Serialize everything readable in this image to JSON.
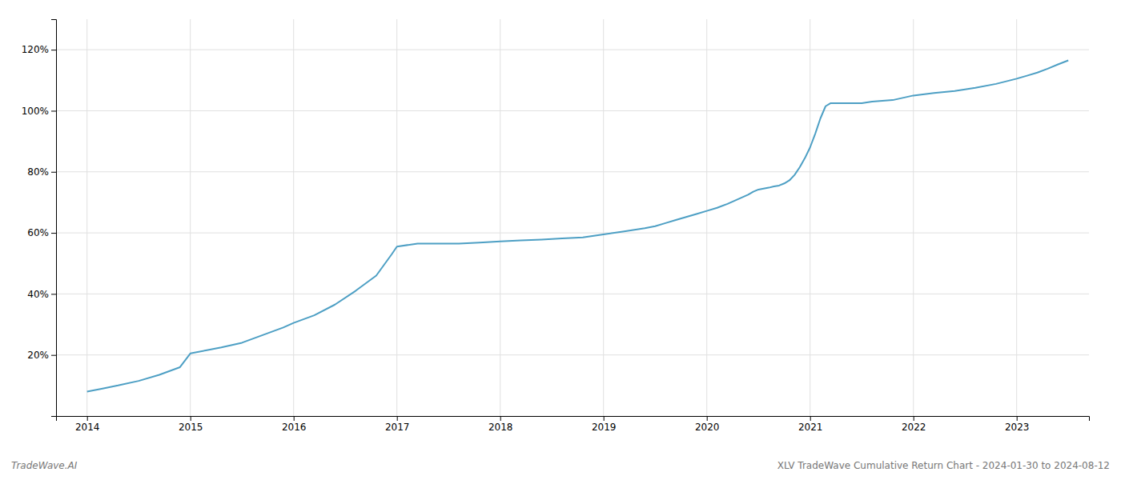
{
  "chart_data": {
    "type": "line",
    "title": "XLV TradeWave Cumulative Return Chart - 2024-01-30 to 2024-08-12",
    "annotations": [
      "TradeWave.AI"
    ],
    "color": "#4d9fc4",
    "grid": true,
    "x": [
      2014.0,
      2014.15,
      2014.3,
      2014.5,
      2014.7,
      2014.9,
      2015.0,
      2015.15,
      2015.3,
      2015.5,
      2015.7,
      2015.9,
      2016.0,
      2016.2,
      2016.4,
      2016.6,
      2016.8,
      2016.95,
      2017.0,
      2017.2,
      2017.4,
      2017.6,
      2017.8,
      2018.0,
      2018.2,
      2018.4,
      2018.6,
      2018.8,
      2019.0,
      2019.2,
      2019.4,
      2019.5,
      2019.6,
      2019.7,
      2019.8,
      2019.9,
      2020.0,
      2020.1,
      2020.2,
      2020.3,
      2020.4,
      2020.45,
      2020.5,
      2020.6,
      2020.65,
      2020.7,
      2020.75,
      2020.8,
      2020.85,
      2020.9,
      2020.95,
      2021.0,
      2021.05,
      2021.1,
      2021.15,
      2021.2,
      2021.3,
      2021.4,
      2021.5,
      2021.6,
      2021.8,
      2022.0,
      2022.2,
      2022.4,
      2022.6,
      2022.8,
      2023.0,
      2023.1,
      2023.2,
      2023.3,
      2023.4,
      2023.5
    ],
    "values": [
      0.08,
      0.09,
      0.1,
      0.115,
      0.135,
      0.16,
      0.205,
      0.215,
      0.225,
      0.24,
      0.265,
      0.29,
      0.305,
      0.33,
      0.365,
      0.41,
      0.46,
      0.53,
      0.555,
      0.565,
      0.565,
      0.565,
      0.568,
      0.572,
      0.575,
      0.578,
      0.582,
      0.585,
      0.595,
      0.605,
      0.615,
      0.622,
      0.632,
      0.642,
      0.652,
      0.662,
      0.672,
      0.682,
      0.695,
      0.71,
      0.725,
      0.735,
      0.742,
      0.748,
      0.752,
      0.755,
      0.762,
      0.772,
      0.79,
      0.815,
      0.845,
      0.88,
      0.925,
      0.975,
      1.015,
      1.025,
      1.025,
      1.025,
      1.025,
      1.03,
      1.035,
      1.05,
      1.058,
      1.065,
      1.075,
      1.088,
      1.105,
      1.115,
      1.125,
      1.138,
      1.152,
      1.165
    ],
    "xlim": [
      2013.7,
      2023.7
    ],
    "xticks": [
      2014,
      2015,
      2016,
      2017,
      2018,
      2019,
      2020,
      2021,
      2022,
      2023
    ],
    "ylim": [
      0.0,
      1.3
    ],
    "yticks": [
      {
        "value": 0.2,
        "label": "20%"
      },
      {
        "value": 0.4,
        "label": "40%"
      },
      {
        "value": 0.6,
        "label": "60%"
      },
      {
        "value": 0.8,
        "label": "80%"
      },
      {
        "value": 1.0,
        "label": "100%"
      },
      {
        "value": 1.2,
        "label": "120%"
      }
    ]
  }
}
